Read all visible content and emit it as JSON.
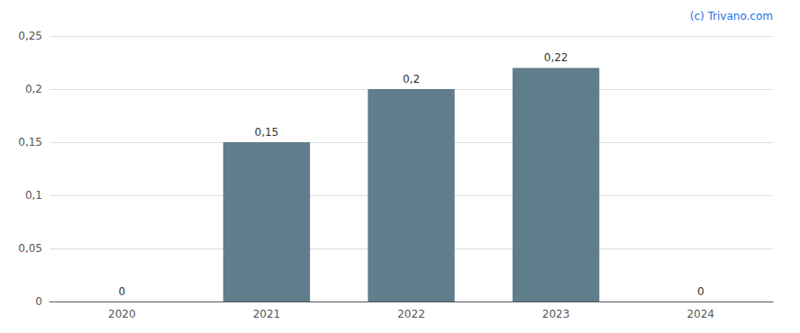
{
  "chart_data": {
    "type": "bar",
    "categories": [
      "2020",
      "2021",
      "2022",
      "2023",
      "2024"
    ],
    "values": [
      0,
      0.15,
      0.2,
      0.22,
      0
    ],
    "value_labels": [
      "0",
      "0,15",
      "0,2",
      "0,22",
      "0"
    ],
    "color": "#607d8b",
    "ylim": [
      0,
      0.25
    ],
    "yticks": [
      0,
      {
        "value": 0.05,
        "label": "0,05"
      },
      {
        "value": 0.1,
        "label": "0,1"
      },
      {
        "value": 0.15,
        "label": "0,15"
      },
      {
        "value": 0.2,
        "label": "0,2"
      },
      {
        "value": 0.25,
        "label": "0,25"
      }
    ],
    "annotation": "(c) Trivano.com",
    "grid": true,
    "data_labels": true
  }
}
